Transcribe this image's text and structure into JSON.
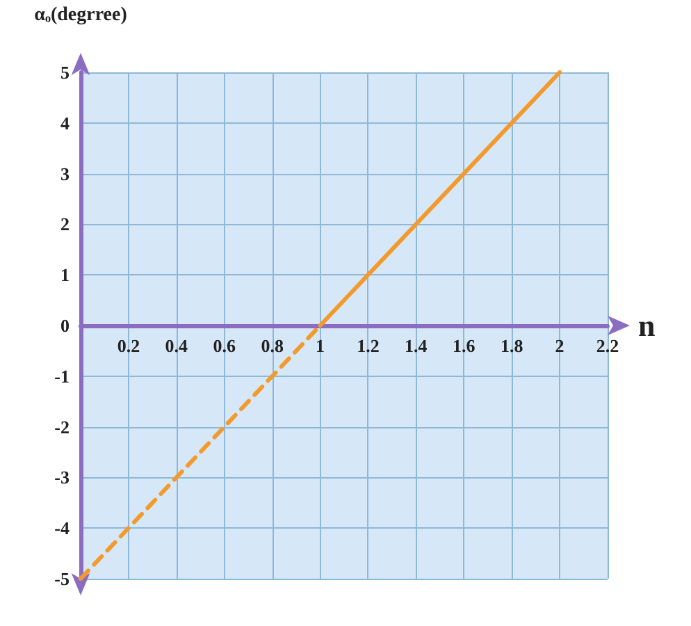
{
  "chart_data": {
    "type": "line",
    "ylabel": "αₒ(degrree)",
    "xlabel": "n",
    "xlim": [
      0,
      2.2
    ],
    "xticks": [
      0.2,
      0.4,
      0.6,
      0.8,
      1,
      1.2,
      1.4,
      1.6,
      1.8,
      2,
      2.2
    ],
    "ylim": [
      -5,
      5
    ],
    "yticks": [
      -5,
      -4,
      -3,
      -2,
      -1,
      0,
      1,
      2,
      3,
      4,
      5
    ],
    "series": [
      {
        "x": [
          0,
          1
        ],
        "values": [
          -5,
          0
        ],
        "color": "#f39a2e",
        "line_style": "dashed"
      },
      {
        "x": [
          1,
          2
        ],
        "values": [
          0,
          5
        ],
        "color": "#f39a2e",
        "line_style": "solid"
      }
    ],
    "grid": true,
    "marker": "none"
  }
}
